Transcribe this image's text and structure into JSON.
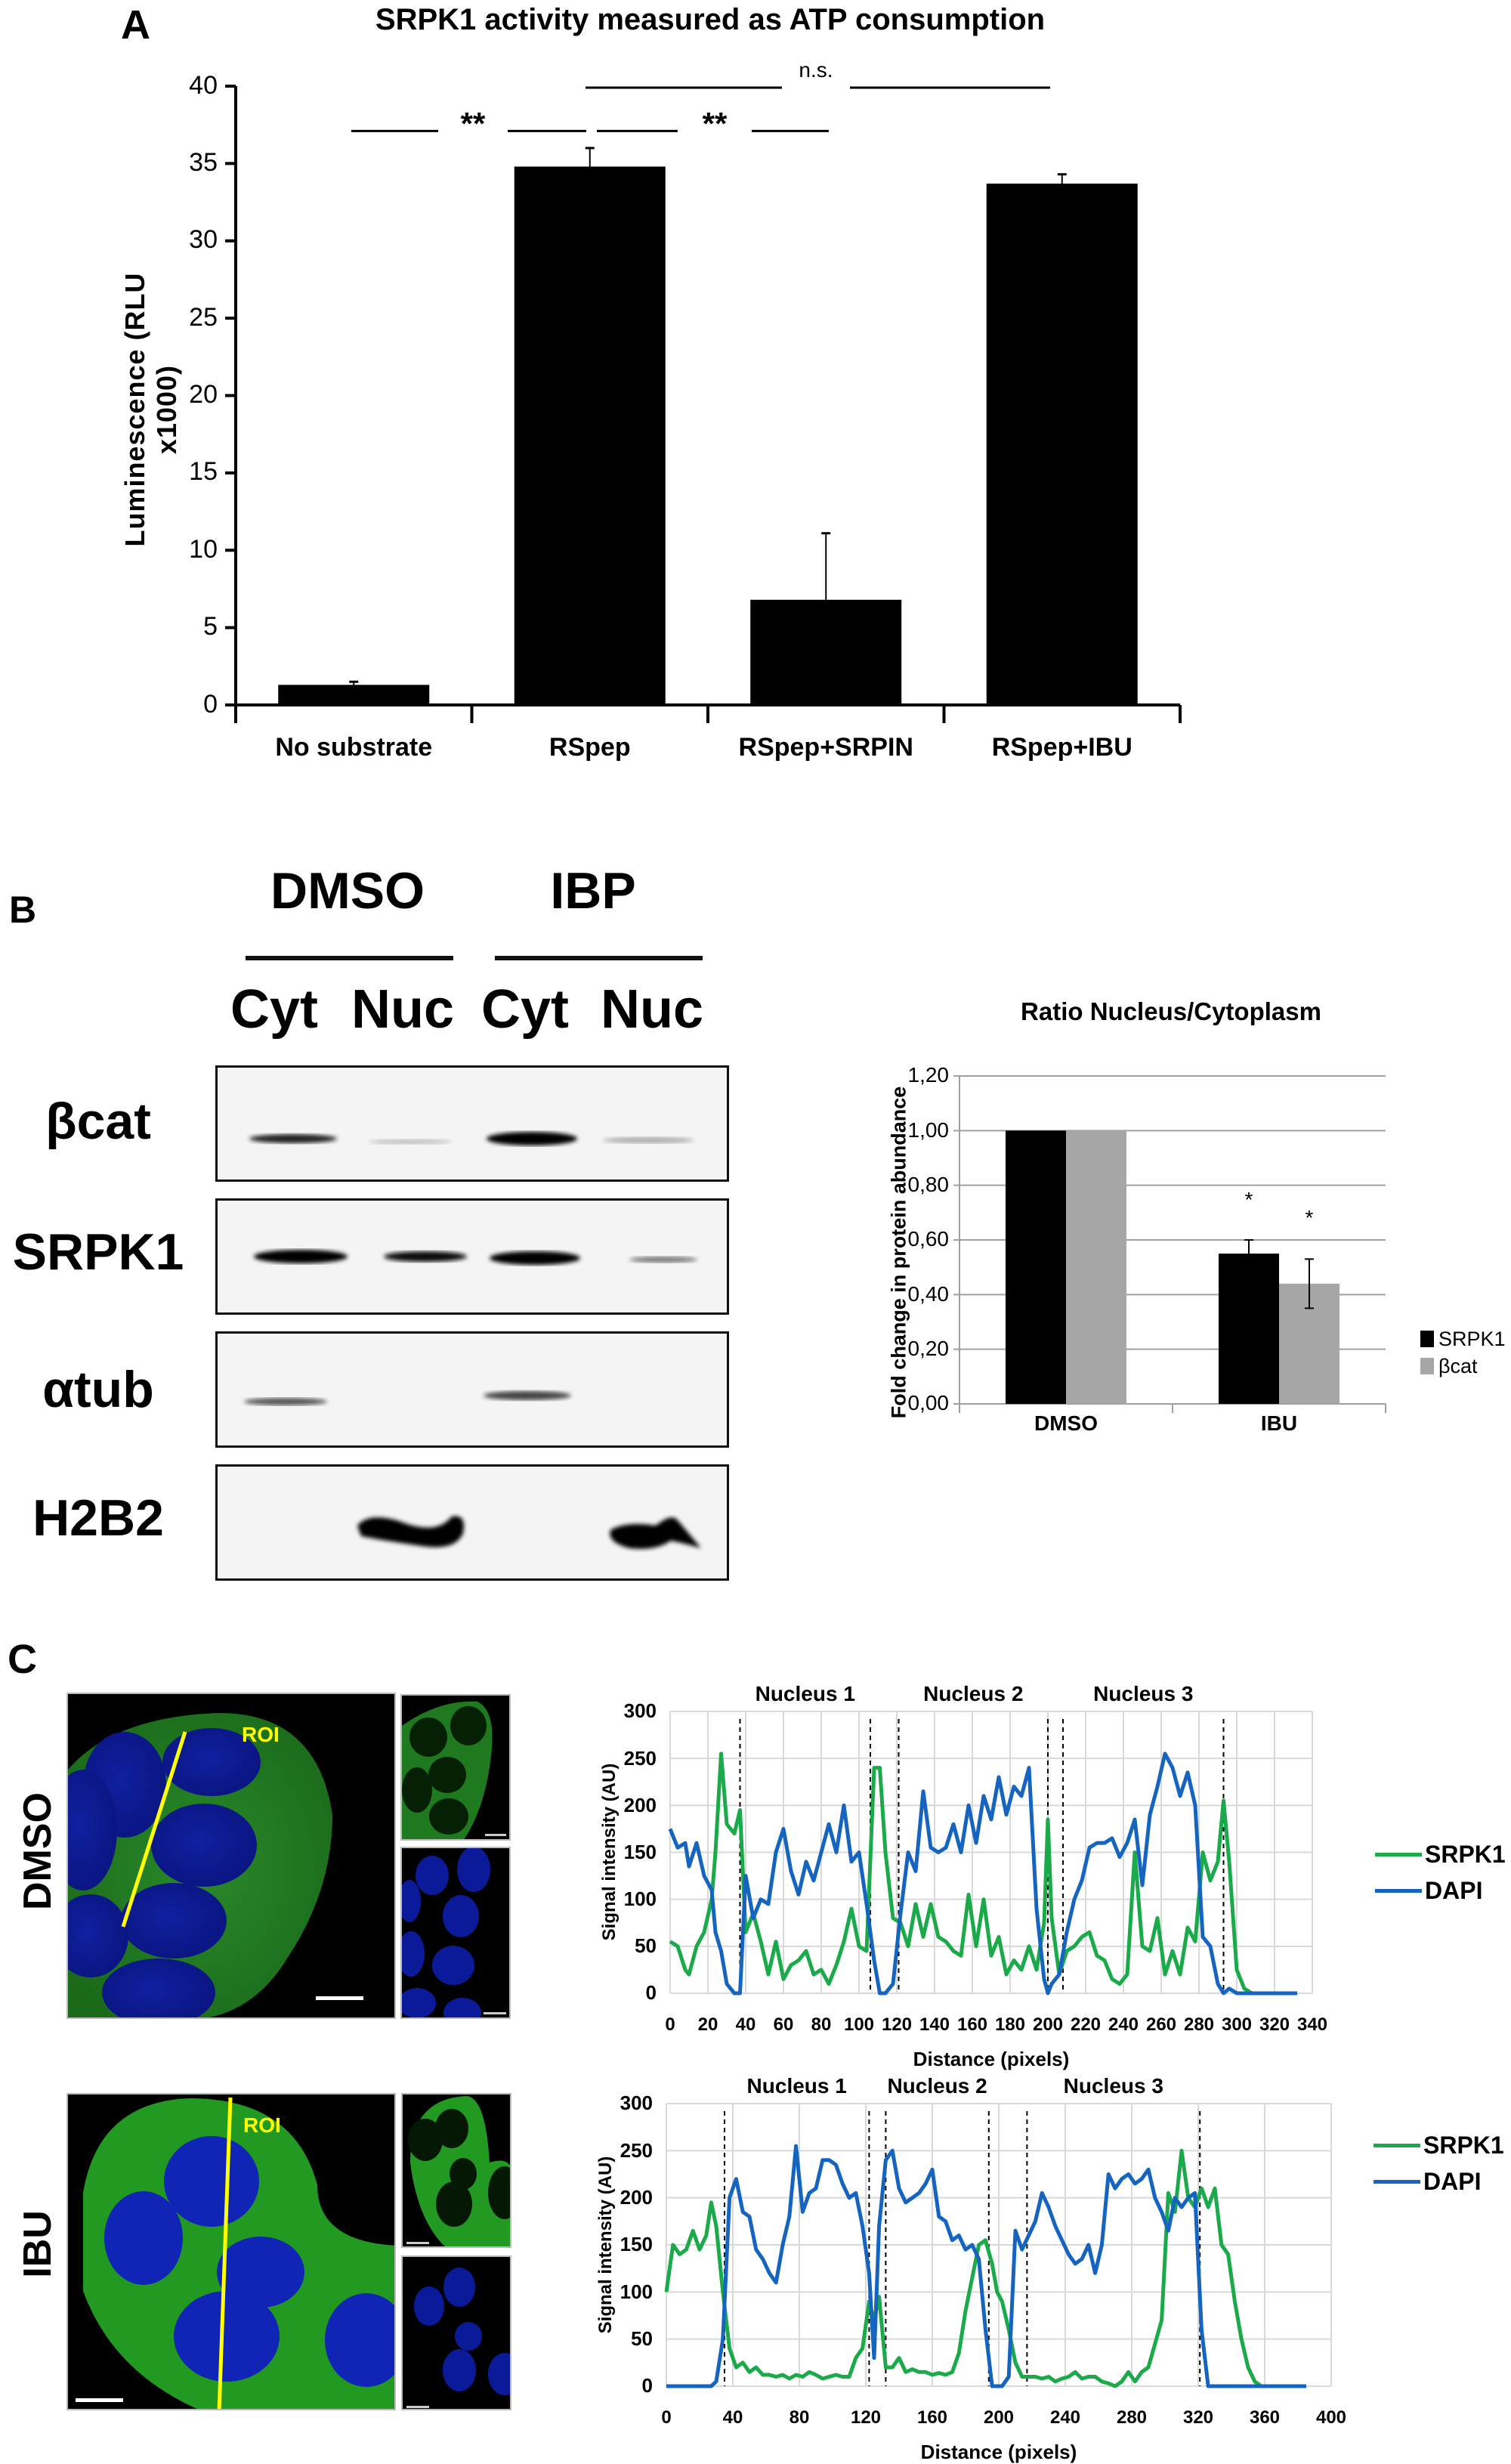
{
  "panels": {
    "A": {
      "letter": "A"
    },
    "B": {
      "letter": "B"
    },
    "C": {
      "letter": "C"
    }
  },
  "blot": {
    "group_labels": [
      "DMSO",
      "IBP"
    ],
    "lane_labels": [
      "Cyt",
      "Nuc",
      "Cyt",
      "Nuc"
    ],
    "row_labels": [
      "βcat",
      "SRPK1",
      "αtub",
      "H2B2"
    ]
  },
  "micrographs": {
    "rows": [
      {
        "condition": "DMSO",
        "roi_label": "ROI"
      },
      {
        "condition": "IBU",
        "roi_label": "ROI"
      }
    ]
  },
  "colors": {
    "srpk1_line": "#1aaa4a",
    "dapi_line": "#1565c0",
    "bar_black": "#000000",
    "bar_gray": "#a6a6a6",
    "roi_yellow": "#ffff00",
    "gridline": "#d9d9d9"
  },
  "chart_data": [
    {
      "id": "A",
      "type": "bar",
      "title": "SRPK1 activity measured as ATP consumption",
      "xlabel": "",
      "ylabel": "Luminescence (RLU x1000)",
      "categories": [
        "No substrate",
        "RSpep",
        "RSpep+SRPIN",
        "RSpep+IBU"
      ],
      "values": [
        1.3,
        34.8,
        6.8,
        33.7
      ],
      "errors": [
        0.2,
        1.2,
        4.3,
        0.6
      ],
      "ylim": [
        0,
        40
      ],
      "yticks": [
        0,
        5,
        10,
        15,
        20,
        25,
        30,
        35,
        40
      ],
      "grid": false,
      "annotations": [
        {
          "text": "**",
          "between": [
            "No substrate",
            "RSpep"
          ]
        },
        {
          "text": "**",
          "between": [
            "RSpep",
            "RSpep+SRPIN"
          ]
        },
        {
          "text": "n.s.",
          "between": [
            "RSpep",
            "RSpep+IBU"
          ]
        }
      ]
    },
    {
      "id": "B",
      "type": "bar",
      "title": "Ratio Nucleus/Cytoplasm",
      "xlabel": "",
      "ylabel": "Fold change in protein abundance",
      "categories": [
        "DMSO",
        "IBU"
      ],
      "series": [
        {
          "name": "SRPK1",
          "color": "#000000",
          "values": [
            1.0,
            0.55
          ],
          "errors": [
            0,
            0.05
          ]
        },
        {
          "name": "βcat",
          "color": "#a6a6a6",
          "values": [
            1.0,
            0.44
          ],
          "errors": [
            0,
            0.09
          ]
        }
      ],
      "ylim": [
        0,
        1.2
      ],
      "yticks": [
        "0,00",
        "0,20",
        "0,40",
        "0,60",
        "0,80",
        "1,00",
        "1,20"
      ],
      "grid": true,
      "legend_position": "right",
      "annotations": [
        {
          "text": "*",
          "series": "SRPK1",
          "category": "IBU"
        },
        {
          "text": "*",
          "series": "βcat",
          "category": "IBU"
        }
      ]
    },
    {
      "id": "C-DMSO",
      "type": "line",
      "title": "",
      "xlabel": "Distance (pixels)",
      "ylabel": "Signal intensity (AU)",
      "xlim": [
        0,
        340
      ],
      "ylim": [
        0,
        300
      ],
      "xticks": [
        0,
        20,
        40,
        60,
        80,
        100,
        120,
        140,
        160,
        180,
        200,
        220,
        240,
        260,
        280,
        300,
        320,
        340
      ],
      "yticks": [
        0,
        50,
        100,
        150,
        200,
        250,
        300
      ],
      "grid": true,
      "legend_position": "right",
      "region_labels": [
        {
          "text": "Nucleus 1",
          "from": 37,
          "to": 106
        },
        {
          "text": "Nucleus 2",
          "from": 121,
          "to": 200
        },
        {
          "text": "Nucleus 3",
          "from": 208,
          "to": 293
        }
      ],
      "dashed_lines_x": [
        37,
        106,
        121,
        200,
        208,
        293
      ],
      "x": [
        0,
        4,
        8,
        10,
        14,
        18,
        22,
        24,
        27,
        30,
        34,
        37,
        40,
        44,
        48,
        52,
        56,
        60,
        64,
        68,
        72,
        76,
        80,
        84,
        88,
        92,
        96,
        100,
        104,
        108,
        111,
        114,
        118,
        122,
        126,
        130,
        134,
        138,
        142,
        146,
        150,
        154,
        158,
        162,
        166,
        170,
        174,
        178,
        182,
        186,
        190,
        194,
        198,
        200,
        202,
        206,
        210,
        214,
        218,
        222,
        226,
        230,
        234,
        238,
        242,
        246,
        250,
        254,
        258,
        262,
        266,
        270,
        274,
        278,
        282,
        286,
        290,
        293,
        296,
        300,
        304,
        308,
        320,
        332
      ],
      "series": [
        {
          "name": "SRPK1",
          "color": "#1aaa4a",
          "values": [
            55,
            50,
            25,
            20,
            50,
            65,
            100,
            150,
            255,
            180,
            170,
            195,
            65,
            85,
            55,
            20,
            55,
            15,
            30,
            35,
            45,
            20,
            25,
            10,
            30,
            55,
            90,
            50,
            45,
            240,
            240,
            150,
            80,
            75,
            50,
            95,
            60,
            95,
            60,
            55,
            45,
            40,
            105,
            50,
            100,
            40,
            60,
            20,
            35,
            25,
            50,
            25,
            75,
            185,
            80,
            20,
            45,
            50,
            60,
            65,
            40,
            35,
            15,
            10,
            20,
            150,
            50,
            45,
            80,
            20,
            45,
            20,
            70,
            55,
            150,
            120,
            140,
            205,
            140,
            25,
            5,
            0,
            0,
            0
          ]
        },
        {
          "name": "DAPI",
          "color": "#1565c0",
          "values": [
            175,
            155,
            160,
            135,
            160,
            125,
            110,
            65,
            45,
            10,
            0,
            0,
            125,
            80,
            100,
            95,
            150,
            175,
            130,
            105,
            140,
            120,
            150,
            180,
            150,
            200,
            140,
            150,
            95,
            35,
            0,
            0,
            10,
            85,
            150,
            130,
            215,
            155,
            150,
            155,
            180,
            150,
            200,
            160,
            210,
            185,
            230,
            190,
            220,
            210,
            240,
            90,
            15,
            0,
            10,
            20,
            65,
            100,
            120,
            155,
            160,
            160,
            165,
            145,
            160,
            185,
            115,
            190,
            220,
            255,
            240,
            210,
            235,
            200,
            60,
            50,
            10,
            0,
            5,
            0,
            0,
            0,
            0,
            0
          ]
        }
      ]
    },
    {
      "id": "C-IBU",
      "type": "line",
      "title": "",
      "xlabel": "Distance (pixels)",
      "ylabel": "Signal intensity (AU)",
      "xlim": [
        0,
        400
      ],
      "ylim": [
        0,
        300
      ],
      "xticks": [
        0,
        40,
        80,
        120,
        160,
        200,
        240,
        280,
        320,
        360,
        400
      ],
      "yticks": [
        0,
        50,
        100,
        150,
        200,
        250,
        300
      ],
      "grid": true,
      "legend_position": "right",
      "region_labels": [
        {
          "text": "Nucleus 1",
          "from": 35,
          "to": 122
        },
        {
          "text": "Nucleus 2",
          "from": 132,
          "to": 194
        },
        {
          "text": "Nucleus 3",
          "from": 217,
          "to": 321
        }
      ],
      "dashed_lines_x": [
        35,
        122,
        132,
        194,
        217,
        321
      ],
      "x": [
        0,
        4,
        8,
        12,
        16,
        20,
        24,
        27,
        30,
        34,
        38,
        42,
        46,
        50,
        54,
        58,
        62,
        66,
        70,
        74,
        78,
        82,
        86,
        90,
        94,
        98,
        102,
        106,
        110,
        114,
        118,
        122,
        125,
        128,
        132,
        136,
        140,
        144,
        148,
        152,
        156,
        160,
        164,
        168,
        172,
        176,
        180,
        184,
        188,
        192,
        196,
        199,
        202,
        206,
        210,
        214,
        218,
        222,
        226,
        230,
        234,
        238,
        242,
        246,
        250,
        254,
        258,
        262,
        266,
        270,
        274,
        278,
        282,
        286,
        290,
        294,
        298,
        302,
        306,
        310,
        314,
        318,
        322,
        326,
        330,
        334,
        338,
        342,
        346,
        350,
        354,
        358,
        362,
        366,
        370,
        374,
        385
      ],
      "series": [
        {
          "name": "SRPK1",
          "color": "#1aaa4a",
          "values": [
            100,
            150,
            140,
            145,
            165,
            145,
            160,
            195,
            170,
            100,
            40,
            20,
            25,
            15,
            20,
            12,
            12,
            10,
            12,
            8,
            12,
            10,
            15,
            12,
            8,
            10,
            12,
            10,
            10,
            30,
            40,
            90,
            70,
            95,
            20,
            20,
            30,
            15,
            18,
            15,
            15,
            12,
            14,
            12,
            15,
            35,
            80,
            115,
            150,
            155,
            130,
            100,
            90,
            60,
            25,
            10,
            10,
            10,
            8,
            10,
            5,
            8,
            10,
            15,
            8,
            10,
            10,
            5,
            3,
            0,
            5,
            15,
            5,
            15,
            20,
            45,
            70,
            205,
            185,
            250,
            200,
            190,
            210,
            190,
            210,
            150,
            140,
            90,
            50,
            20,
            5,
            0,
            0,
            0,
            0,
            0,
            0
          ]
        },
        {
          "name": "DAPI",
          "color": "#1565c0",
          "values": [
            0,
            0,
            0,
            0,
            0,
            0,
            0,
            0,
            5,
            50,
            200,
            220,
            185,
            180,
            145,
            135,
            120,
            110,
            150,
            180,
            255,
            185,
            205,
            210,
            240,
            240,
            235,
            215,
            200,
            205,
            170,
            120,
            30,
            170,
            240,
            250,
            210,
            195,
            200,
            205,
            215,
            230,
            180,
            175,
            155,
            160,
            145,
            150,
            135,
            60,
            0,
            0,
            0,
            10,
            165,
            145,
            160,
            175,
            205,
            190,
            170,
            155,
            140,
            130,
            135,
            150,
            120,
            150,
            225,
            210,
            220,
            225,
            215,
            220,
            230,
            200,
            185,
            165,
            200,
            190,
            200,
            205,
            60,
            0,
            0,
            0,
            0,
            0,
            0,
            0,
            0,
            0,
            0,
            0,
            0,
            0,
            0
          ]
        }
      ]
    }
  ]
}
